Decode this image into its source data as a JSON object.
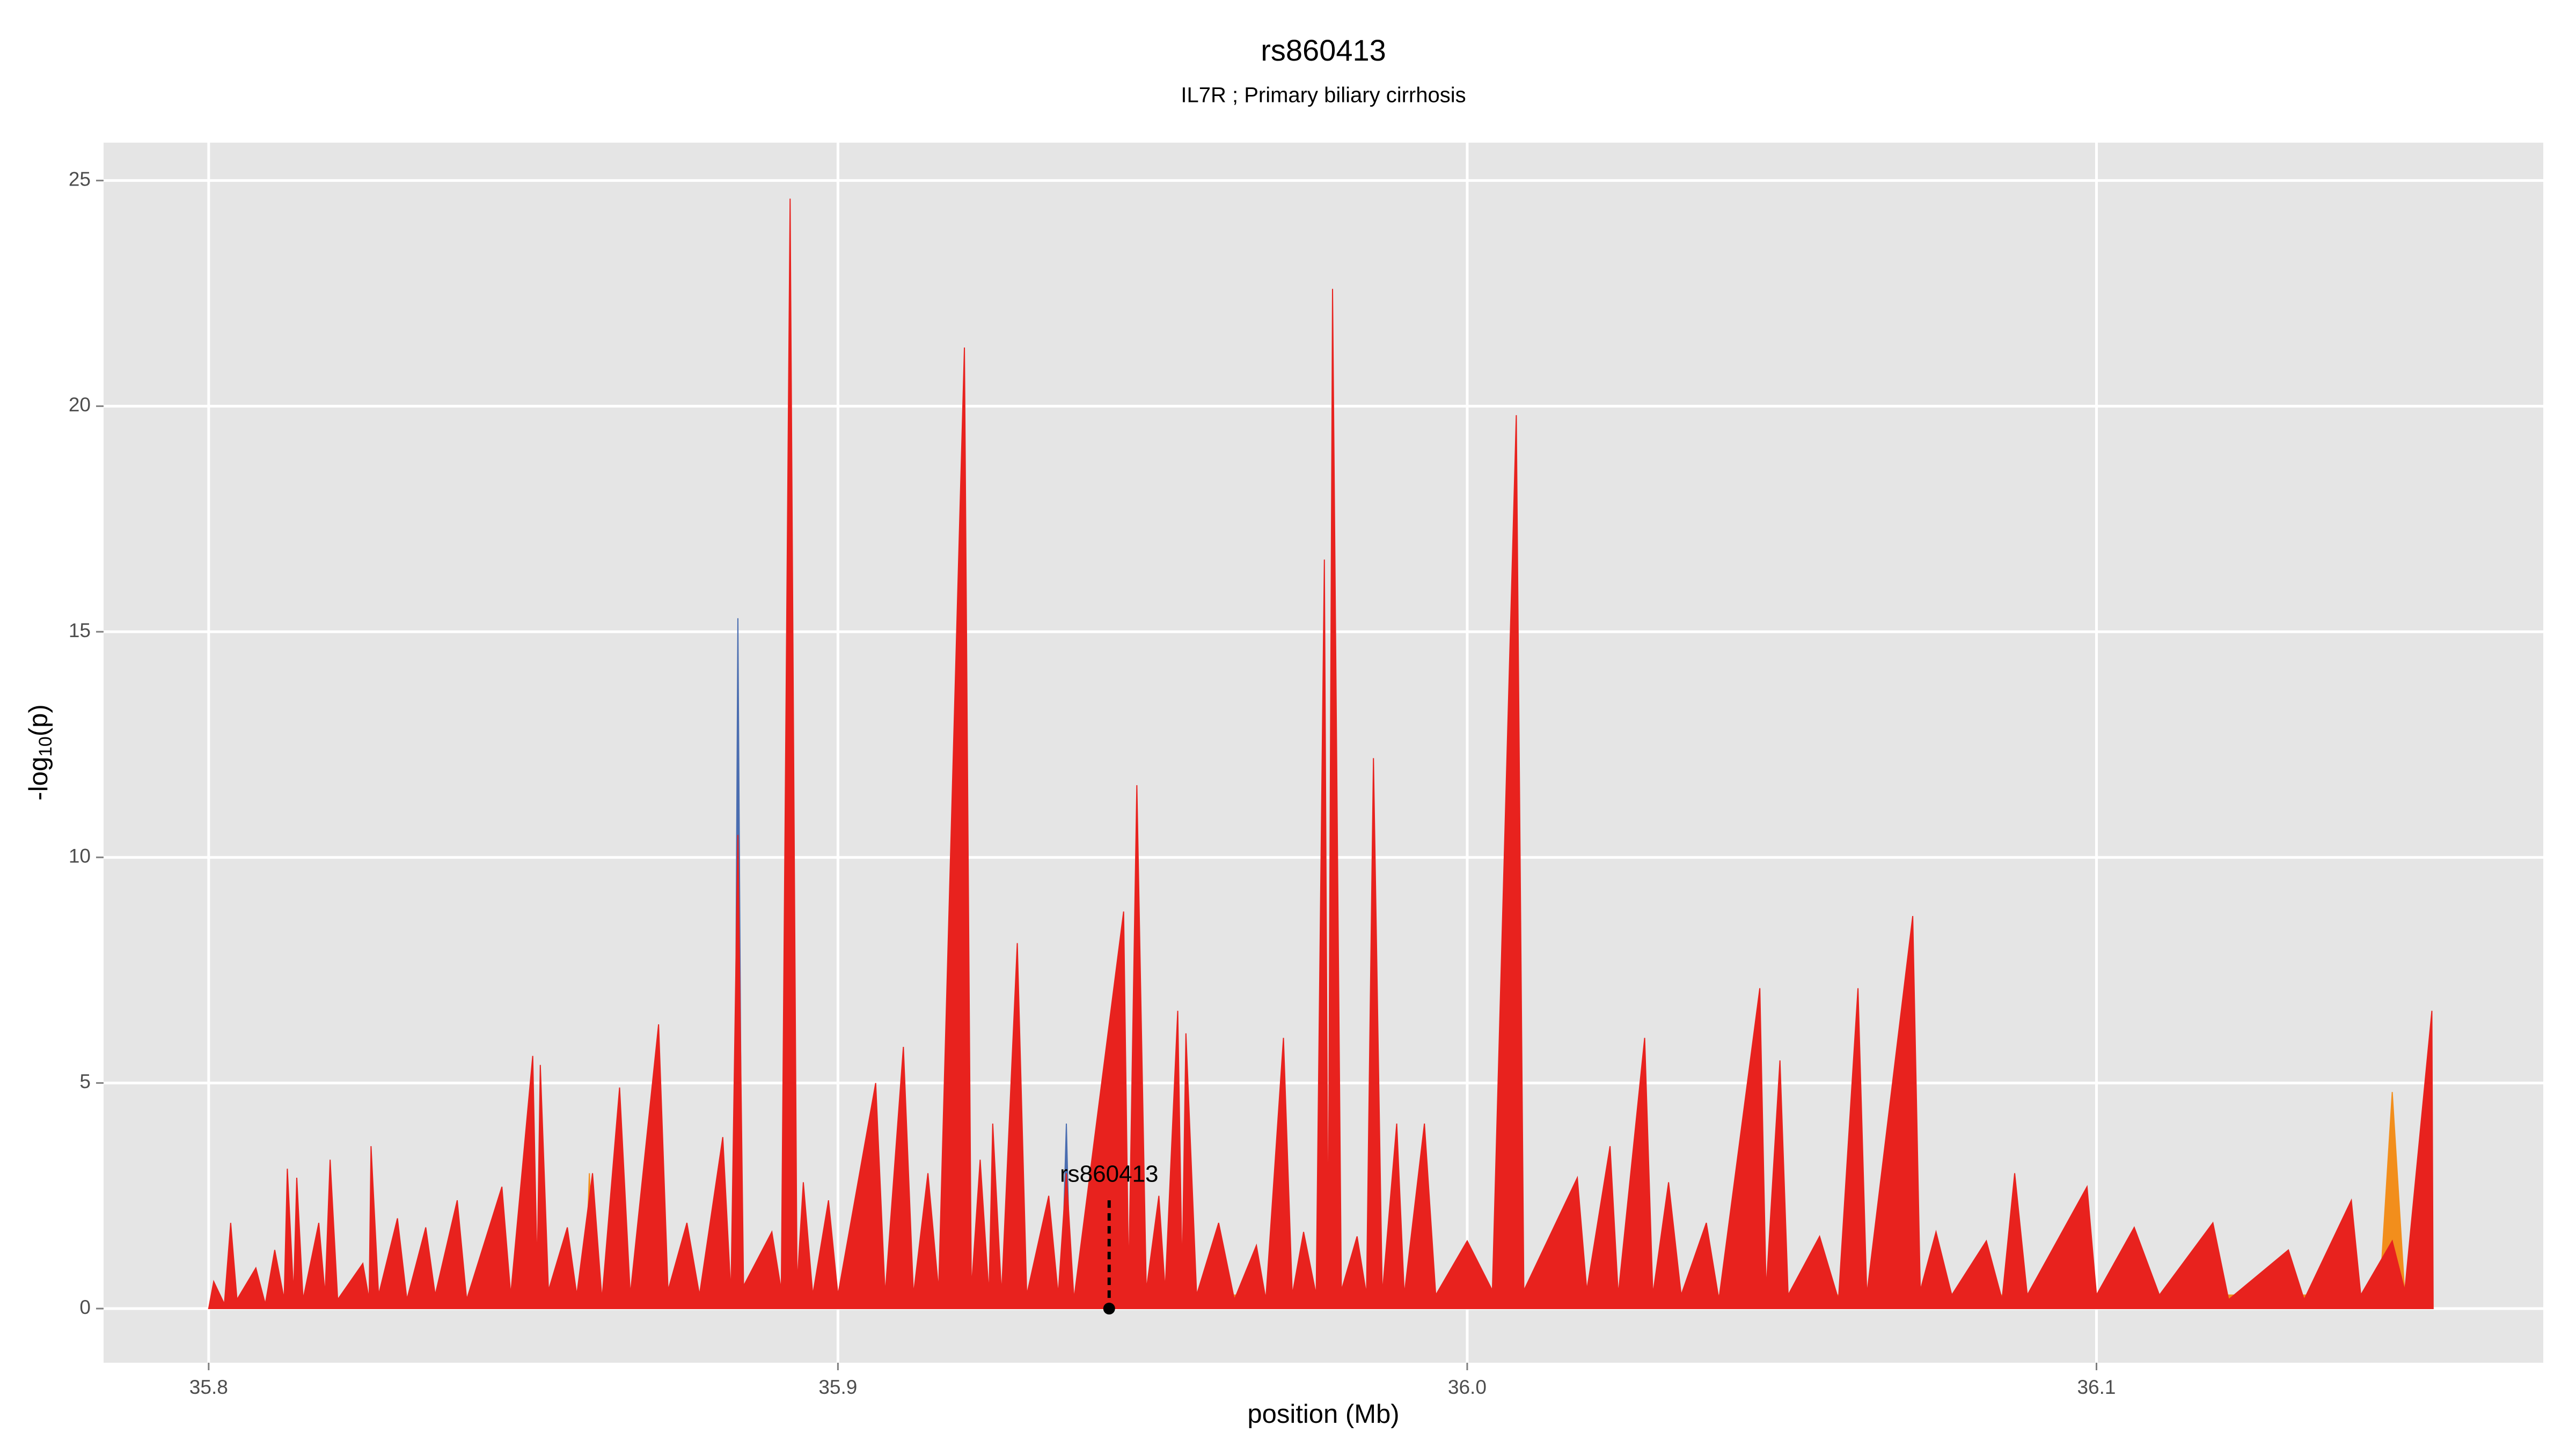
{
  "chart_data": {
    "type": "area",
    "title": "rs860413",
    "subtitle": "IL7R ; Primary biliary cirrhosis",
    "xlabel": "position (Mb)",
    "ylabel": {
      "prefix": "-log",
      "subscript": "10",
      "suffix": "(p)"
    },
    "xlim": [
      35.7833,
      36.171
    ],
    "ylim": [
      -1.2,
      25.84
    ],
    "xticks": [
      35.8,
      35.9,
      {
        "value": 36,
        "label": "36.0"
      },
      36.1
    ],
    "yticks": [
      0,
      5,
      10,
      15,
      20,
      25
    ],
    "grid": true,
    "annotation": {
      "label": "rs860413",
      "x": 35.9431,
      "y": 2.4
    },
    "series": [
      {
        "color": "#4a6db0",
        "x": [
          35.8,
          35.8835,
          35.8841,
          35.8848,
          35.9355,
          35.9363,
          35.937,
          36.1535
        ],
        "values": [
          0,
          0.2,
          15.3,
          0.2,
          0.2,
          4.1,
          0.1,
          0
        ]
      },
      {
        "color": "#f28e1c",
        "x": [
          35.8,
          35.8598,
          35.8605,
          35.8612,
          36.145,
          36.147,
          36.149,
          36.1535
        ],
        "values": [
          0,
          0.3,
          3.0,
          0.3,
          0.3,
          4.8,
          0.3,
          0
        ]
      },
      {
        "color": "#e8221e",
        "x": [
          35.8,
          35.8008,
          35.8025,
          35.8035,
          35.8045,
          35.8075,
          35.809,
          35.8105,
          35.812,
          35.8125,
          35.8135,
          35.814,
          35.815,
          35.8175,
          35.8185,
          35.8193,
          35.8205,
          35.8245,
          35.8255,
          35.8258,
          35.827,
          35.83,
          35.8315,
          35.8345,
          35.836,
          35.8395,
          35.841,
          35.8466,
          35.848,
          35.8515,
          35.8522,
          35.8527,
          35.854,
          35.857,
          35.8585,
          35.861,
          35.8625,
          35.8653,
          35.867,
          35.8715,
          35.873,
          35.876,
          35.878,
          35.8817,
          35.883,
          35.8841,
          35.885,
          35.8895,
          35.891,
          35.8924,
          35.8935,
          35.8945,
          35.896,
          35.8985,
          35.9,
          35.906,
          35.9075,
          35.9104,
          35.912,
          35.9143,
          35.916,
          35.9201,
          35.9212,
          35.9226,
          35.924,
          35.9246,
          35.926,
          35.9285,
          35.93,
          35.9335,
          35.935,
          35.9363,
          35.9375,
          35.9454,
          35.9462,
          35.9475,
          35.949,
          35.951,
          35.952,
          35.954,
          35.9547,
          35.9553,
          35.957,
          35.9605,
          35.963,
          35.9665,
          35.968,
          35.9708,
          35.9722,
          35.974,
          35.976,
          35.9773,
          35.9779,
          35.9786,
          35.98,
          35.9825,
          35.984,
          35.9851,
          35.9865,
          35.9888,
          35.99,
          35.9932,
          35.995,
          36.0,
          36.004,
          36.0078,
          36.009,
          36.0175,
          36.019,
          36.0227,
          36.024,
          36.0282,
          36.0295,
          36.032,
          36.034,
          36.038,
          36.04,
          36.0465,
          36.0475,
          36.0497,
          36.051,
          36.056,
          36.059,
          36.0621,
          36.0635,
          36.0708,
          36.072,
          36.0745,
          36.077,
          36.0825,
          36.085,
          36.087,
          36.089,
          36.0985,
          36.1,
          36.106,
          36.11,
          36.1185,
          36.121,
          36.1305,
          36.133,
          36.1405,
          36.142,
          36.147,
          36.149,
          36.1533,
          36.1535
        ],
        "values": [
          0,
          0.6,
          0.1,
          1.9,
          0.2,
          0.9,
          0.1,
          1.3,
          0.2,
          3.1,
          0.3,
          2.9,
          0.2,
          1.9,
          0.3,
          3.3,
          0.2,
          1.0,
          0.2,
          3.6,
          0.3,
          2.0,
          0.2,
          1.8,
          0.3,
          2.4,
          0.2,
          2.7,
          0.3,
          5.6,
          0.8,
          5.4,
          0.4,
          1.8,
          0.3,
          3.0,
          0.2,
          4.9,
          0.3,
          6.3,
          0.4,
          1.9,
          0.3,
          3.8,
          0.3,
          10.5,
          0.5,
          1.7,
          0.4,
          24.6,
          0.5,
          2.8,
          0.3,
          2.4,
          0.3,
          5.0,
          0.3,
          5.8,
          0.3,
          3.0,
          0.4,
          21.3,
          0.4,
          3.3,
          0.3,
          4.1,
          0.3,
          8.1,
          0.3,
          2.5,
          0.3,
          3.0,
          0.2,
          8.8,
          0.6,
          11.6,
          0.4,
          2.5,
          0.4,
          6.6,
          0.7,
          6.1,
          0.3,
          1.9,
          0.2,
          1.4,
          0.2,
          6.0,
          0.3,
          1.7,
          0.3,
          16.6,
          0.8,
          22.6,
          0.4,
          1.6,
          0.3,
          12.2,
          0.3,
          4.1,
          0.3,
          4.1,
          0.3,
          1.5,
          0.4,
          19.8,
          0.4,
          2.9,
          0.4,
          3.6,
          0.3,
          6.0,
          0.3,
          2.8,
          0.3,
          1.9,
          0.2,
          7.1,
          0.4,
          5.5,
          0.3,
          1.6,
          0.2,
          7.1,
          0.3,
          8.7,
          0.4,
          1.7,
          0.3,
          1.5,
          0.2,
          3.0,
          0.3,
          2.7,
          0.3,
          1.8,
          0.3,
          1.9,
          0.2,
          1.3,
          0.2,
          2.4,
          0.3,
          1.5,
          0.4,
          6.6,
          0
        ]
      }
    ]
  }
}
